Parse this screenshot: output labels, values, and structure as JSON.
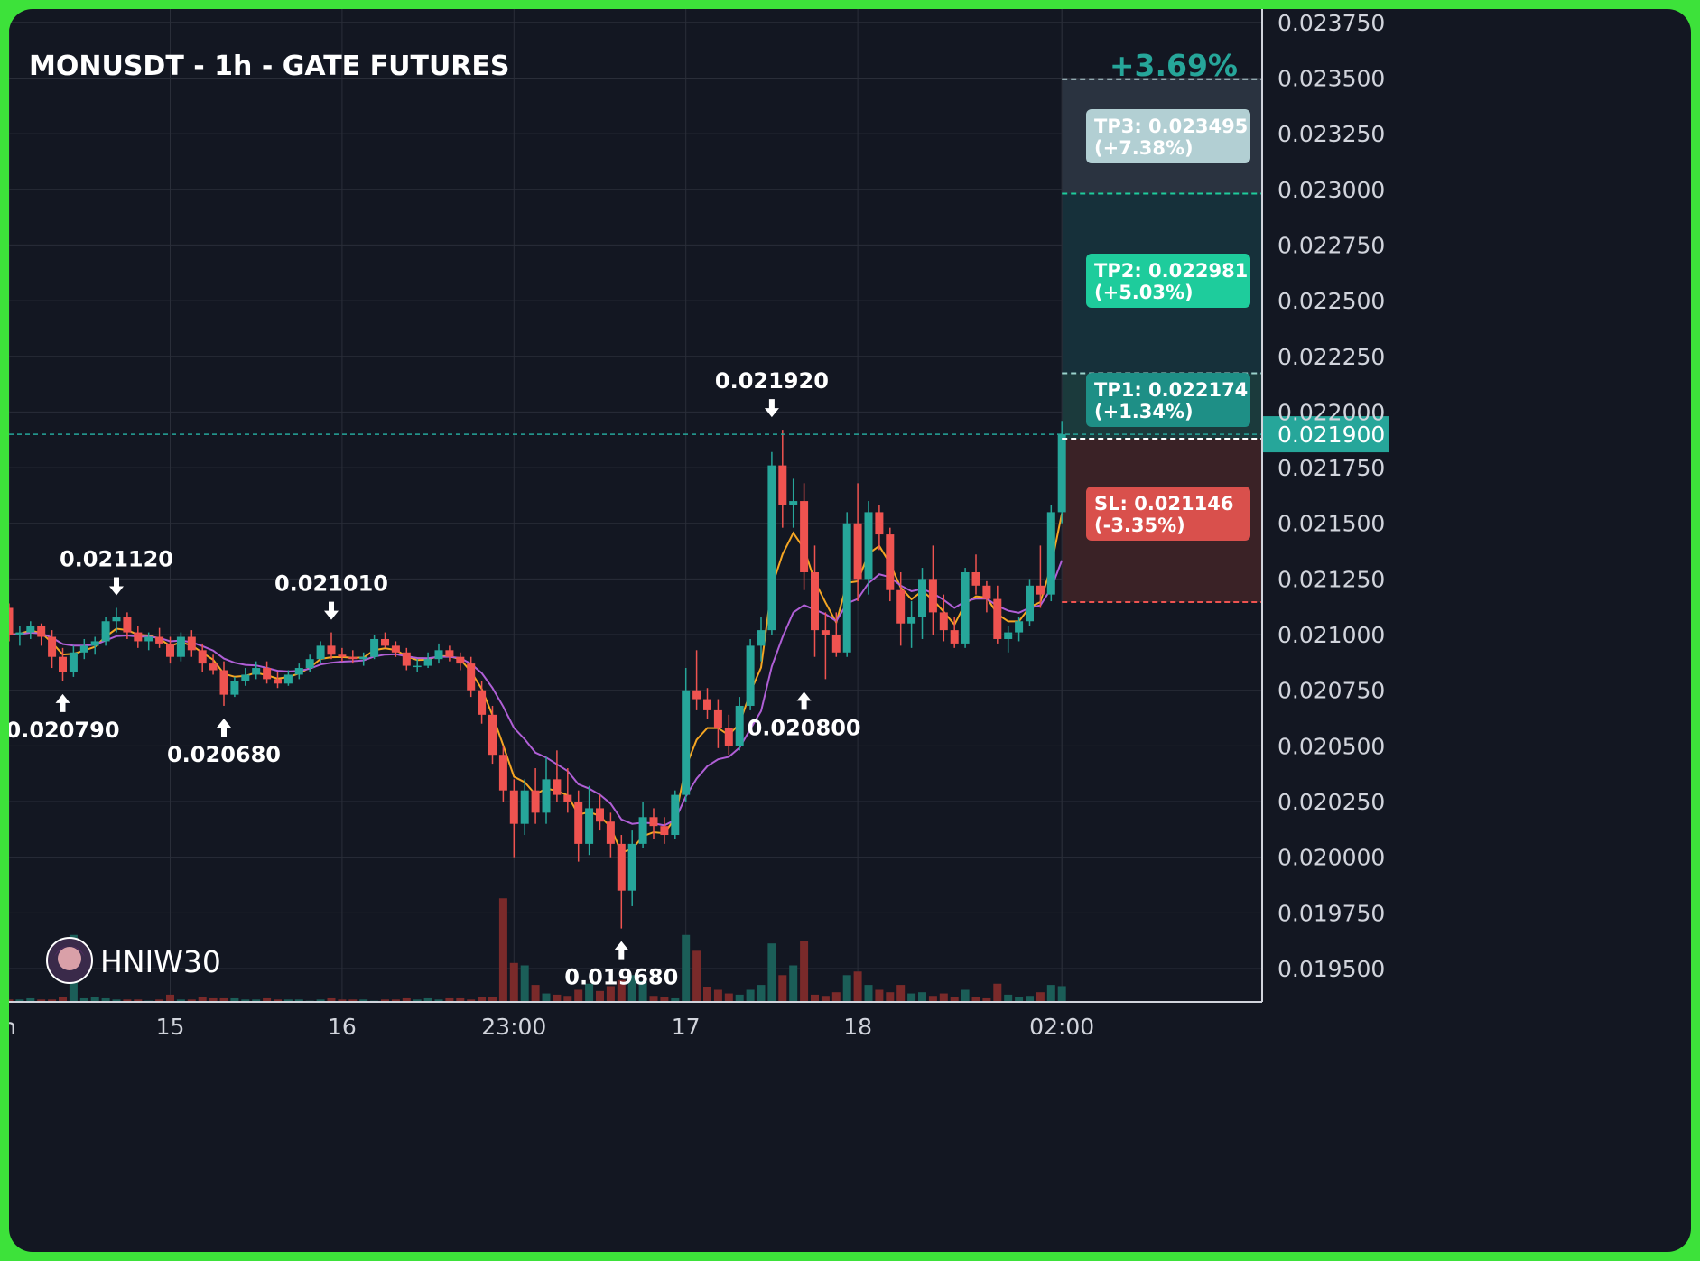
{
  "chart_data": {
    "type": "candlestick",
    "title": "MONUSDT - 1h - GATE FUTURES",
    "watermark": "HNIW30",
    "ylim": [
      0.01935,
      0.02381
    ],
    "y_ticks": [
      "0.023750",
      "0.023500",
      "0.023250",
      "0.023000",
      "0.022750",
      "0.022500",
      "0.022250",
      "0.022000",
      "0.021750",
      "0.021500",
      "0.021250",
      "0.021000",
      "0.020750",
      "0.020500",
      "0.020250",
      "0.020000",
      "0.019750",
      "0.019500"
    ],
    "x_ticks": [
      {
        "label": "n",
        "index": 0
      },
      {
        "label": "15",
        "index": 15
      },
      {
        "label": "16",
        "index": 31
      },
      {
        "label": "23:00",
        "index": 47
      },
      {
        "label": "17",
        "index": 63
      },
      {
        "label": "18",
        "index": 79
      },
      {
        "label": "02:00",
        "index": 98
      }
    ],
    "last_price": "0.021900",
    "gain_label": "+3.69%",
    "colors": {
      "up": "#26a69a",
      "down": "#ef5350",
      "vol_up": "#1b5e58",
      "vol_down": "#7a2a2a",
      "ema_fast": "#f5a623",
      "ema_slow": "#b05fd6",
      "background": "#131722",
      "frame": "#3de23a"
    },
    "levels": {
      "tp3": {
        "price": 0.023495,
        "label": "TP3: 0.023495",
        "pct": "(+7.38%)",
        "color": "#b2cfd3"
      },
      "tp2": {
        "price": 0.022981,
        "label": "TP2: 0.022981",
        "pct": "(+5.03%)",
        "color": "#1ecc9c"
      },
      "tp1": {
        "price": 0.022174,
        "label": "TP1: 0.022174",
        "pct": "(+1.34%)",
        "color": "#1e8f86"
      },
      "entry": {
        "price": 0.02188
      },
      "sl": {
        "price": 0.021146,
        "label": "SL: 0.021146",
        "pct": "(-3.35%)",
        "color": "#d9504c"
      }
    },
    "annotations": [
      {
        "text": "0.021120",
        "index": 10,
        "price": 0.02112,
        "type": "high"
      },
      {
        "text": "0.021010",
        "index": 30,
        "price": 0.02101,
        "type": "high"
      },
      {
        "text": "0.021920",
        "index": 71,
        "price": 0.02192,
        "type": "high"
      },
      {
        "text": "0.020790",
        "index": 5,
        "price": 0.02079,
        "type": "low"
      },
      {
        "text": "0.020680",
        "index": 20,
        "price": 0.02068,
        "type": "low"
      },
      {
        "text": "0.020800",
        "index": 74,
        "price": 0.0208,
        "type": "low"
      },
      {
        "text": "0.019680",
        "index": 57,
        "price": 0.01968,
        "type": "low"
      }
    ],
    "ohlc": [
      [
        0.02112,
        0.02114,
        0.02097,
        0.021
      ],
      [
        0.021,
        0.02104,
        0.02095,
        0.02101
      ],
      [
        0.02101,
        0.02106,
        0.02098,
        0.02104
      ],
      [
        0.02104,
        0.02105,
        0.02095,
        0.02099
      ],
      [
        0.02099,
        0.02102,
        0.02085,
        0.0209
      ],
      [
        0.0209,
        0.02094,
        0.02079,
        0.02083
      ],
      [
        0.02083,
        0.02095,
        0.02081,
        0.02092
      ],
      [
        0.02092,
        0.02098,
        0.02089,
        0.02095
      ],
      [
        0.02095,
        0.02099,
        0.02091,
        0.02097
      ],
      [
        0.02097,
        0.02108,
        0.02095,
        0.02106
      ],
      [
        0.02106,
        0.02112,
        0.02101,
        0.02108
      ],
      [
        0.02108,
        0.0211,
        0.02098,
        0.02101
      ],
      [
        0.02101,
        0.02104,
        0.02094,
        0.02097
      ],
      [
        0.02097,
        0.02101,
        0.02093,
        0.02099
      ],
      [
        0.02099,
        0.02103,
        0.02094,
        0.02096
      ],
      [
        0.02096,
        0.02099,
        0.02087,
        0.0209
      ],
      [
        0.0209,
        0.02101,
        0.02088,
        0.02099
      ],
      [
        0.02099,
        0.02102,
        0.0209,
        0.02093
      ],
      [
        0.02093,
        0.02096,
        0.02083,
        0.02087
      ],
      [
        0.02087,
        0.02091,
        0.02082,
        0.02084
      ],
      [
        0.02084,
        0.02088,
        0.02068,
        0.02073
      ],
      [
        0.02073,
        0.02081,
        0.02072,
        0.02079
      ],
      [
        0.02079,
        0.02085,
        0.02077,
        0.02082
      ],
      [
        0.02082,
        0.02088,
        0.0208,
        0.02085
      ],
      [
        0.02085,
        0.02088,
        0.02078,
        0.0208
      ],
      [
        0.0208,
        0.02083,
        0.02076,
        0.02078
      ],
      [
        0.02078,
        0.02084,
        0.02077,
        0.02082
      ],
      [
        0.02082,
        0.02087,
        0.0208,
        0.02085
      ],
      [
        0.02085,
        0.02091,
        0.02083,
        0.02089
      ],
      [
        0.02089,
        0.02097,
        0.02087,
        0.02095
      ],
      [
        0.02095,
        0.02101,
        0.02089,
        0.02091
      ],
      [
        0.02091,
        0.02094,
        0.02088,
        0.0209
      ],
      [
        0.0209,
        0.02093,
        0.02087,
        0.02089
      ],
      [
        0.02089,
        0.02092,
        0.02086,
        0.0209
      ],
      [
        0.0209,
        0.021,
        0.02089,
        0.02098
      ],
      [
        0.02098,
        0.02101,
        0.02094,
        0.02095
      ],
      [
        0.02095,
        0.02097,
        0.0209,
        0.02092
      ],
      [
        0.02092,
        0.02094,
        0.02084,
        0.02086
      ],
      [
        0.02086,
        0.02089,
        0.02083,
        0.02086
      ],
      [
        0.02086,
        0.02092,
        0.02085,
        0.02089
      ],
      [
        0.02089,
        0.02096,
        0.02087,
        0.02093
      ],
      [
        0.02093,
        0.02095,
        0.02088,
        0.0209
      ],
      [
        0.0209,
        0.02092,
        0.02084,
        0.02087
      ],
      [
        0.02087,
        0.0209,
        0.02072,
        0.02075
      ],
      [
        0.02075,
        0.02079,
        0.0206,
        0.02064
      ],
      [
        0.02064,
        0.02068,
        0.02042,
        0.02046
      ],
      [
        0.02046,
        0.0205,
        0.02025,
        0.0203
      ],
      [
        0.0203,
        0.02035,
        0.02,
        0.02015
      ],
      [
        0.02015,
        0.02035,
        0.0201,
        0.0203
      ],
      [
        0.0203,
        0.0204,
        0.02015,
        0.0202
      ],
      [
        0.0202,
        0.02045,
        0.02015,
        0.02035
      ],
      [
        0.02035,
        0.02048,
        0.02025,
        0.02028
      ],
      [
        0.02028,
        0.0204,
        0.0202,
        0.02025
      ],
      [
        0.02025,
        0.0203,
        0.01998,
        0.02006
      ],
      [
        0.02006,
        0.02032,
        0.02001,
        0.02022
      ],
      [
        0.02022,
        0.02028,
        0.02012,
        0.02016
      ],
      [
        0.02016,
        0.0202,
        0.02,
        0.02006
      ],
      [
        0.02006,
        0.0201,
        0.01968,
        0.01985
      ],
      [
        0.01985,
        0.02012,
        0.01978,
        0.02006
      ],
      [
        0.02006,
        0.02025,
        0.02004,
        0.02018
      ],
      [
        0.02018,
        0.02022,
        0.02008,
        0.02014
      ],
      [
        0.02014,
        0.02018,
        0.02006,
        0.0201
      ],
      [
        0.0201,
        0.0203,
        0.02008,
        0.02028
      ],
      [
        0.02028,
        0.02085,
        0.02025,
        0.02075
      ],
      [
        0.02075,
        0.02093,
        0.02066,
        0.02071
      ],
      [
        0.02071,
        0.02076,
        0.02062,
        0.02066
      ],
      [
        0.02066,
        0.02071,
        0.02049,
        0.02058
      ],
      [
        0.02058,
        0.02064,
        0.02046,
        0.0205
      ],
      [
        0.0205,
        0.02072,
        0.02048,
        0.02068
      ],
      [
        0.02068,
        0.02098,
        0.02066,
        0.02095
      ],
      [
        0.02095,
        0.02108,
        0.02088,
        0.02102
      ],
      [
        0.02102,
        0.02182,
        0.021,
        0.02176
      ],
      [
        0.02176,
        0.02192,
        0.02148,
        0.02158
      ],
      [
        0.02158,
        0.0217,
        0.02148,
        0.0216
      ],
      [
        0.0216,
        0.02168,
        0.0212,
        0.02128
      ],
      [
        0.02128,
        0.0214,
        0.0209,
        0.02102
      ],
      [
        0.02102,
        0.0211,
        0.0208,
        0.021
      ],
      [
        0.021,
        0.0211,
        0.0209,
        0.02092
      ],
      [
        0.02092,
        0.02155,
        0.0209,
        0.0215
      ],
      [
        0.0215,
        0.02168,
        0.02115,
        0.02125
      ],
      [
        0.02125,
        0.0216,
        0.02118,
        0.02155
      ],
      [
        0.02155,
        0.02158,
        0.02138,
        0.02145
      ],
      [
        0.02145,
        0.02148,
        0.02115,
        0.0212
      ],
      [
        0.0212,
        0.02128,
        0.02095,
        0.02105
      ],
      [
        0.02105,
        0.02115,
        0.02094,
        0.02108
      ],
      [
        0.02108,
        0.0213,
        0.02098,
        0.02125
      ],
      [
        0.02125,
        0.0214,
        0.021,
        0.0211
      ],
      [
        0.0211,
        0.02118,
        0.02097,
        0.02102
      ],
      [
        0.02102,
        0.02108,
        0.02094,
        0.02096
      ],
      [
        0.02096,
        0.0213,
        0.02094,
        0.02128
      ],
      [
        0.02128,
        0.02136,
        0.02118,
        0.02122
      ],
      [
        0.02122,
        0.02124,
        0.0211,
        0.02116
      ],
      [
        0.02116,
        0.02122,
        0.02096,
        0.02098
      ],
      [
        0.02098,
        0.02104,
        0.02092,
        0.02101
      ],
      [
        0.02101,
        0.02108,
        0.02097,
        0.02106
      ],
      [
        0.02106,
        0.02125,
        0.02104,
        0.02122
      ],
      [
        0.02122,
        0.0214,
        0.02112,
        0.02118
      ],
      [
        0.02118,
        0.02158,
        0.02115,
        0.02155
      ],
      [
        0.02155,
        0.02196,
        0.0215,
        0.0219
      ]
    ],
    "volume": [
      2,
      2,
      3,
      2,
      2,
      4,
      55,
      3,
      4,
      3,
      2,
      2,
      2,
      1,
      2,
      6,
      2,
      2,
      4,
      3,
      3,
      3,
      2,
      2,
      3,
      2,
      2,
      2,
      1,
      2,
      3,
      2,
      2,
      2,
      1,
      2,
      2,
      3,
      2,
      3,
      2,
      3,
      3,
      2,
      4,
      4,
      85,
      32,
      30,
      14,
      7,
      6,
      5,
      10,
      15,
      9,
      13,
      18,
      22,
      17,
      5,
      4,
      3,
      55,
      42,
      12,
      10,
      7,
      6,
      10,
      14,
      48,
      22,
      30,
      50,
      6,
      5,
      8,
      22,
      25,
      14,
      10,
      8,
      14,
      7,
      8,
      5,
      7,
      4,
      10,
      4,
      3,
      15,
      6,
      4,
      5,
      8,
      14,
      13
    ],
    "vol_max": 100
  }
}
